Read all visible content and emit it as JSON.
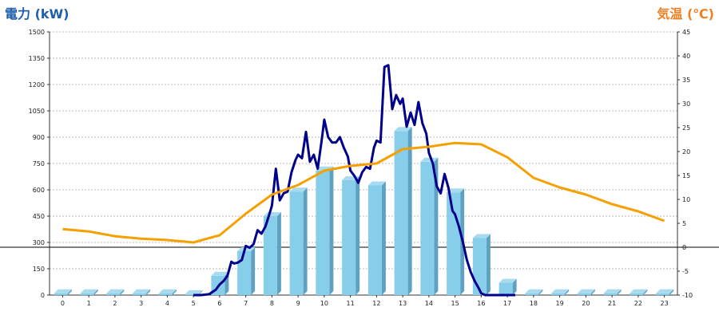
{
  "chart_data": {
    "type": "bar+line",
    "left_axis_title": "電力 (kW)",
    "right_axis_title": "気温 (℃)",
    "left_axis": {
      "min": 0,
      "max": 1500,
      "ticks": [
        "0",
        "150",
        "300",
        "450",
        "600",
        "750",
        "900",
        "1050",
        "1200",
        "1350",
        "1500"
      ]
    },
    "right_axis": {
      "min": -10,
      "max": 45,
      "ticks": [
        "-10",
        "-5",
        "0",
        "5",
        "10",
        "15",
        "20",
        "25",
        "30",
        "35",
        "40",
        "45"
      ]
    },
    "categories": [
      "0",
      "1",
      "2",
      "3",
      "4",
      "5",
      "6",
      "7",
      "8",
      "9",
      "10",
      "11",
      "12",
      "13",
      "14",
      "15",
      "16",
      "17",
      "18",
      "19",
      "20",
      "21",
      "22",
      "23"
    ],
    "grid": "horizontal-dashed",
    "series": [
      {
        "kind": "bar",
        "axis": "left",
        "color": "#87ceeb",
        "values": [
          10,
          10,
          10,
          10,
          10,
          5,
          110,
          250,
          450,
          590,
          710,
          655,
          625,
          935,
          760,
          585,
          325,
          70,
          10,
          10,
          10,
          10,
          10,
          10
        ]
      },
      {
        "kind": "line",
        "axis": "left",
        "color": "#00008b",
        "x": [
          5,
          5.3,
          5.6,
          5.85,
          6,
          6.15,
          6.3,
          6.45,
          6.55,
          6.7,
          6.85,
          7,
          7.15,
          7.3,
          7.45,
          7.6,
          7.75,
          7.9,
          8,
          8.15,
          8.3,
          8.45,
          8.6,
          8.75,
          8.9,
          9,
          9.15,
          9.3,
          9.45,
          9.6,
          9.75,
          9.9,
          10,
          10.15,
          10.3,
          10.45,
          10.6,
          10.75,
          10.9,
          11,
          11.15,
          11.3,
          11.45,
          11.6,
          11.75,
          11.9,
          12,
          12.15,
          12.3,
          12.45,
          12.6,
          12.75,
          12.9,
          13,
          13.15,
          13.3,
          13.45,
          13.6,
          13.75,
          13.9,
          14,
          14.15,
          14.3,
          14.45,
          14.6,
          14.75,
          14.9,
          15,
          15.15,
          15.3,
          15.45,
          15.6,
          15.75,
          15.9,
          16,
          16.15,
          16.3,
          16.45,
          16.6,
          16.75,
          16.9,
          17,
          17.15,
          17.3
        ],
        "values": [
          0,
          0,
          5,
          30,
          60,
          80,
          110,
          190,
          180,
          185,
          200,
          280,
          270,
          290,
          370,
          350,
          390,
          460,
          510,
          720,
          540,
          580,
          590,
          700,
          770,
          800,
          780,
          930,
          760,
          800,
          720,
          880,
          1000,
          900,
          870,
          870,
          900,
          840,
          790,
          710,
          680,
          640,
          700,
          730,
          720,
          840,
          880,
          870,
          1300,
          1310,
          1060,
          1140,
          1090,
          1120,
          960,
          1040,
          970,
          1100,
          980,
          920,
          810,
          750,
          620,
          580,
          690,
          610,
          480,
          460,
          390,
          300,
          200,
          130,
          80,
          40,
          10,
          0,
          0,
          0,
          0,
          0,
          0,
          0,
          0,
          0
        ]
      },
      {
        "kind": "line",
        "axis": "right",
        "color": "#f5a000",
        "values": [
          3.8,
          3.3,
          2.3,
          1.8,
          1.5,
          1,
          2.5,
          7,
          11,
          13,
          16,
          17,
          17.5,
          20.5,
          21,
          21.8,
          21.5,
          18.8,
          14.5,
          12.5,
          11,
          9,
          7.5,
          5.5
        ]
      }
    ]
  }
}
